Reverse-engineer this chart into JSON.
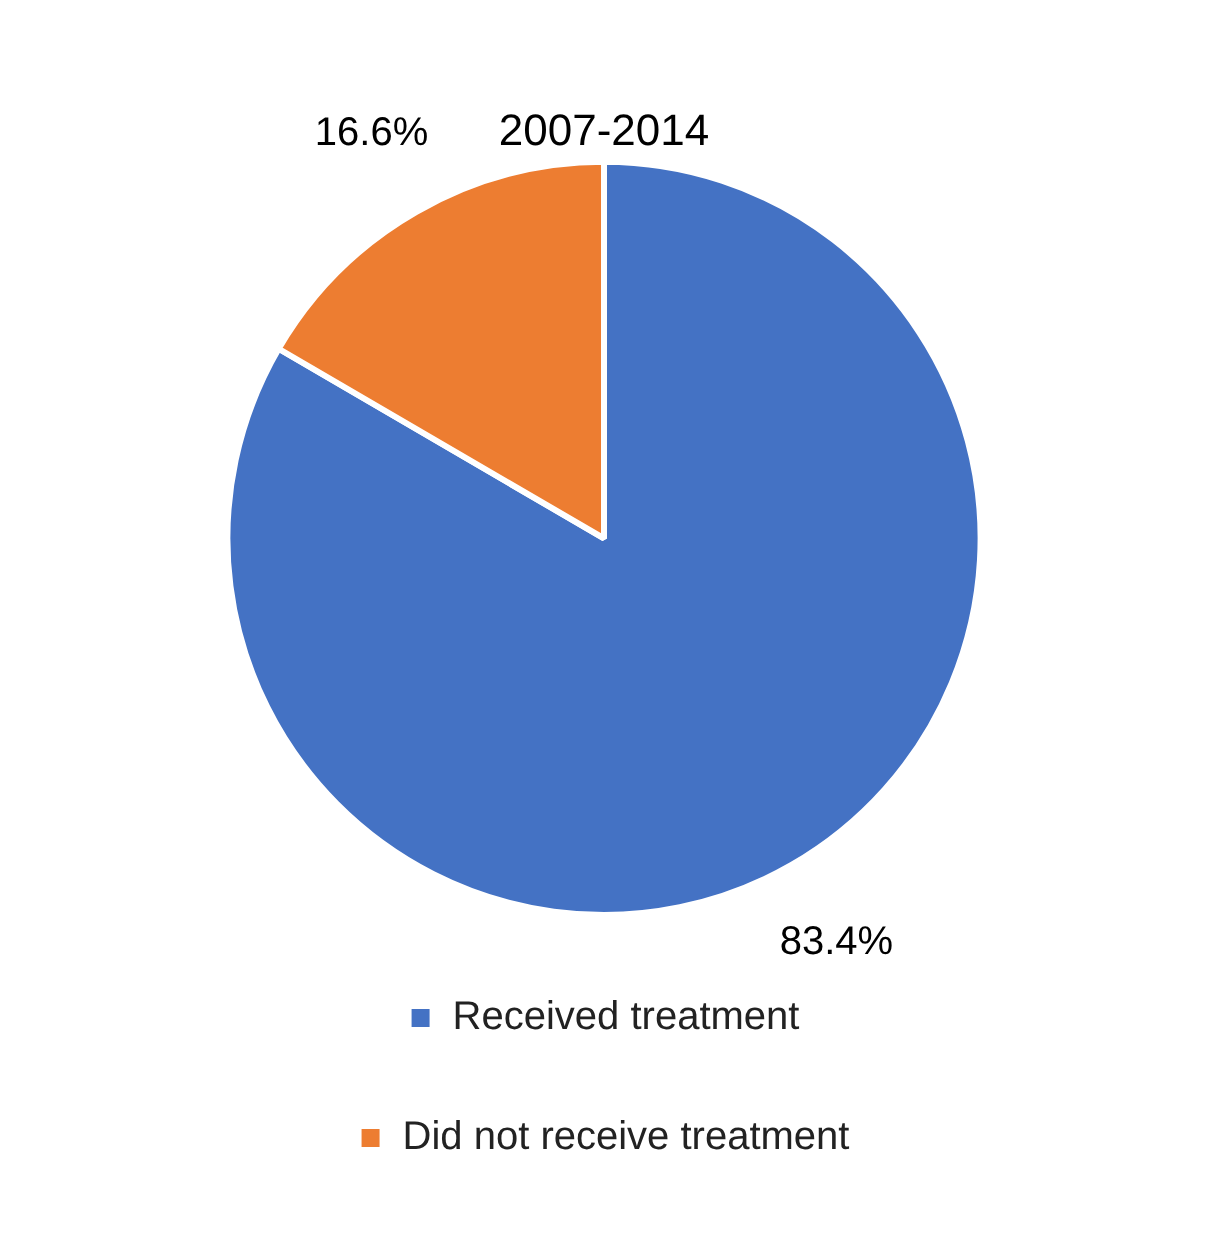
{
  "chart_data": {
    "type": "pie",
    "title": "2007-2014",
    "categories": [
      "Received treatment",
      "Did not receive treatment"
    ],
    "values": [
      83.4,
      16.6
    ],
    "colors": [
      "#4472c4",
      "#ed7d31"
    ],
    "value_labels": [
      "83.4%",
      "16.6%"
    ],
    "legend": "bottom"
  }
}
